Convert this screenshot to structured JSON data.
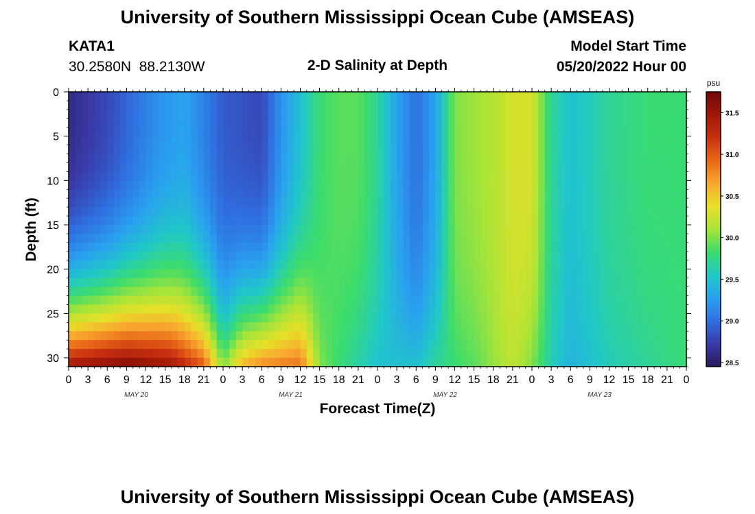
{
  "title": "University of Southern Mississippi Ocean Cube (AMSEAS)",
  "station": {
    "id": "KATA1",
    "coords": "30.2580N  88.2130W"
  },
  "model_start": {
    "label": "Model Start Time",
    "value": "05/20/2022 Hour 00"
  },
  "footer_title": "University of Southern Mississippi Ocean Cube (AMSEAS)",
  "chart_data": {
    "type": "heatmap",
    "title": "2-D Salinity at Depth",
    "xlabel": "Forecast Time(Z)",
    "ylabel": "Depth (ft)",
    "x_range_hours": [
      0,
      96
    ],
    "x_tick_step_hours": 3,
    "x_tick_labels": [
      "0",
      "3",
      "6",
      "9",
      "12",
      "15",
      "18",
      "21",
      "0",
      "3",
      "6",
      "9",
      "12",
      "15",
      "18",
      "21",
      "0",
      "3",
      "6",
      "9",
      "12",
      "15",
      "18",
      "21",
      "0",
      "3",
      "6",
      "9",
      "12",
      "15",
      "18",
      "21",
      "0"
    ],
    "day_labels": [
      "MAY 20",
      "MAY 21",
      "MAY 22",
      "MAY 23"
    ],
    "y_range": [
      0,
      31
    ],
    "y_ticks": [
      0,
      5,
      10,
      15,
      20,
      25,
      30
    ],
    "colorbar": {
      "unit": "psu",
      "range": [
        28.45,
        31.75
      ],
      "ticks": [
        "28.5",
        "29.0",
        "29.5",
        "30.0",
        "30.5",
        "31.0",
        "31.5"
      ],
      "colors": [
        "#2a1a5c",
        "#3a3aa8",
        "#2f6fe0",
        "#2aa0f0",
        "#20c8c8",
        "#3cdc6c",
        "#a8e438",
        "#e8e028",
        "#f8a830",
        "#e86818",
        "#c83010",
        "#a01808",
        "#700808"
      ]
    },
    "surface_salinity_by_hour": [
      [
        0,
        28.6
      ],
      [
        6,
        28.8
      ],
      [
        10,
        29.0
      ],
      [
        14,
        29.2
      ],
      [
        18,
        29.3
      ],
      [
        24,
        28.9
      ],
      [
        30,
        28.8
      ],
      [
        33,
        29.2
      ],
      [
        36,
        29.5
      ],
      [
        39,
        29.8
      ],
      [
        42,
        29.9
      ],
      [
        45,
        29.9
      ],
      [
        48,
        29.7
      ],
      [
        51,
        29.3
      ],
      [
        54,
        29.0
      ],
      [
        57,
        29.3
      ],
      [
        60,
        30.0
      ],
      [
        66,
        30.15
      ],
      [
        69,
        30.3
      ],
      [
        72,
        30.3
      ],
      [
        75,
        29.7
      ],
      [
        78,
        29.5
      ],
      [
        84,
        29.7
      ],
      [
        90,
        29.8
      ],
      [
        96,
        29.8
      ]
    ],
    "bottom_salinity_by_hour": [
      [
        0,
        31.5
      ],
      [
        9,
        31.7
      ],
      [
        16,
        31.5
      ],
      [
        21,
        31.0
      ],
      [
        24,
        30.0
      ],
      [
        27,
        30.6
      ],
      [
        30,
        30.8
      ],
      [
        36,
        30.9
      ],
      [
        39,
        30.0
      ],
      [
        42,
        29.8
      ],
      [
        48,
        29.5
      ],
      [
        54,
        29.5
      ],
      [
        57,
        29.7
      ],
      [
        63,
        29.9
      ],
      [
        69,
        30.2
      ],
      [
        72,
        30.0
      ],
      [
        75,
        29.6
      ],
      [
        78,
        29.4
      ],
      [
        84,
        29.6
      ],
      [
        96,
        29.8
      ]
    ]
  }
}
